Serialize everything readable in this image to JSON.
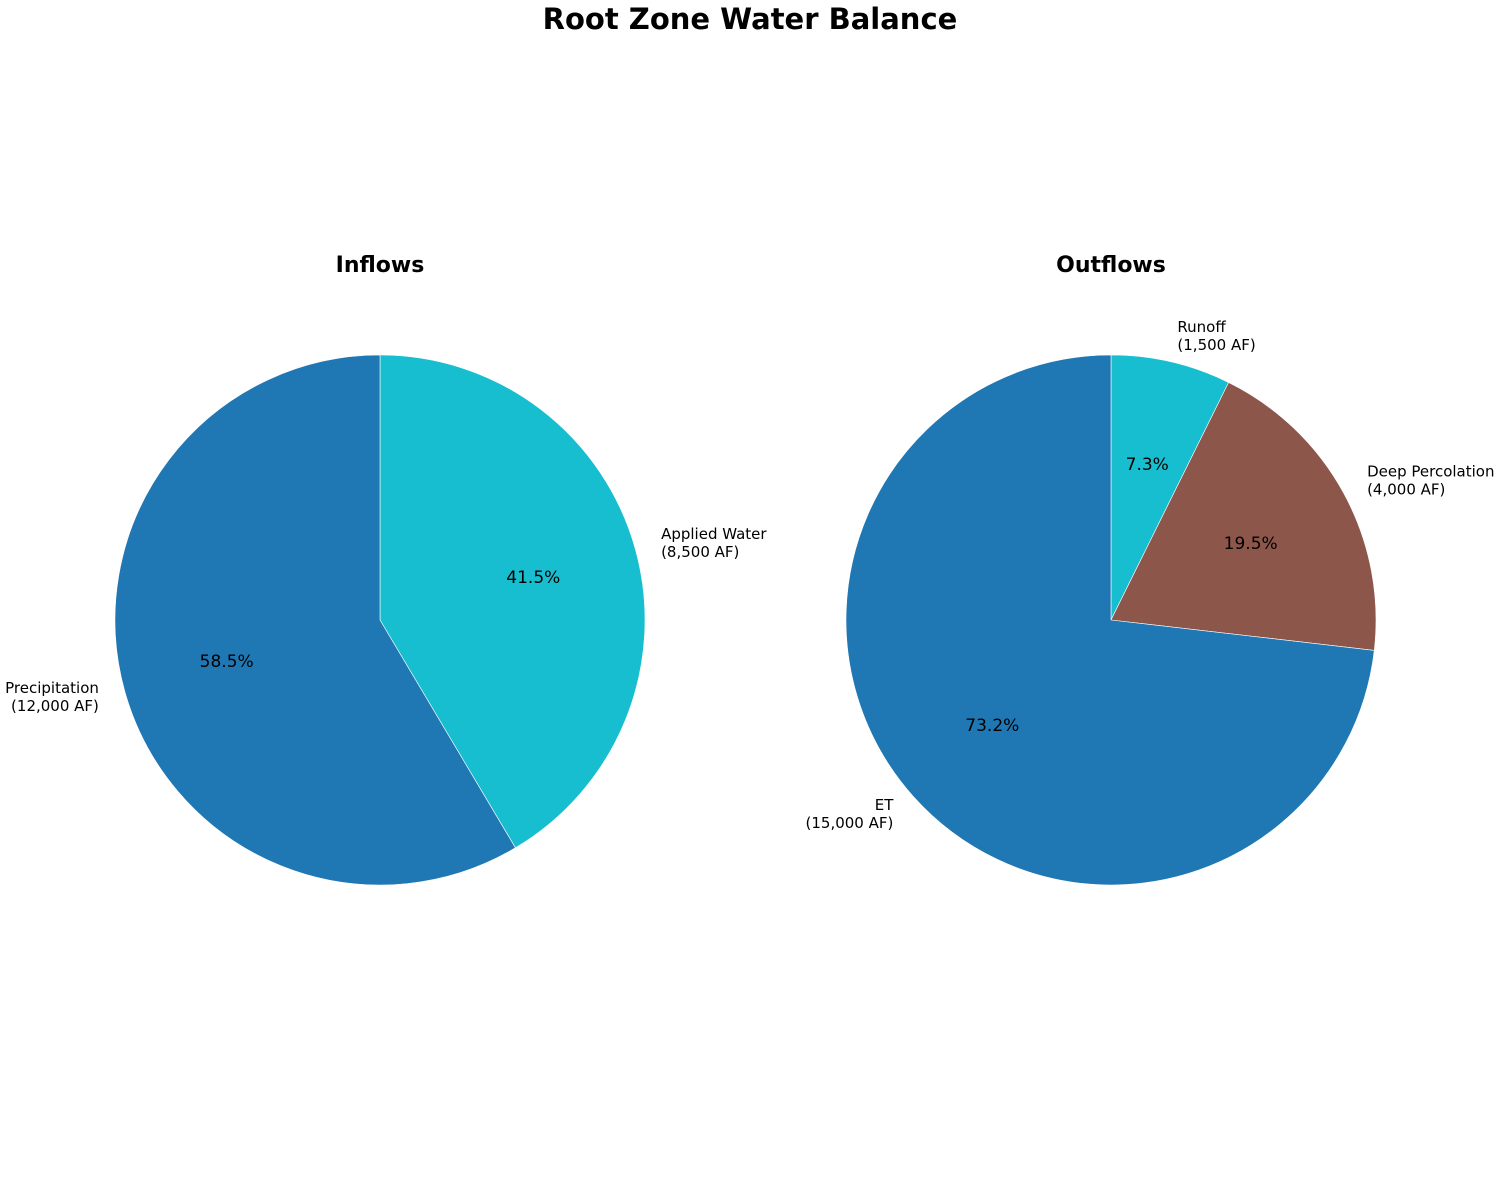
{
  "figure": {
    "title": "Root Zone Water Balance"
  },
  "chart_data": [
    {
      "type": "pie",
      "title": "Inflows",
      "start_angle_deg": 90,
      "direction": "clockwise",
      "slices": [
        {
          "label": "Applied Water",
          "value": 8500,
          "value_label": "(8,500 AF)",
          "percent": "41.5%",
          "color": "#17becf"
        },
        {
          "label": "Precipitation",
          "value": 12000,
          "value_label": "(12,000 AF)",
          "percent": "58.5%",
          "color": "#1f77b4"
        }
      ]
    },
    {
      "type": "pie",
      "title": "Outflows",
      "start_angle_deg": 90,
      "direction": "clockwise",
      "slices": [
        {
          "label": "Runoff",
          "value": 1500,
          "value_label": "(1,500 AF)",
          "percent": "7.3%",
          "color": "#17becf"
        },
        {
          "label": "Deep Percolation",
          "value": 4000,
          "value_label": "(4,000 AF)",
          "percent": "19.5%",
          "color": "#8c564b"
        },
        {
          "label": "ET",
          "value": 15000,
          "value_label": "(15,000 AF)",
          "percent": "73.2%",
          "color": "#1f77b4"
        }
      ]
    }
  ]
}
